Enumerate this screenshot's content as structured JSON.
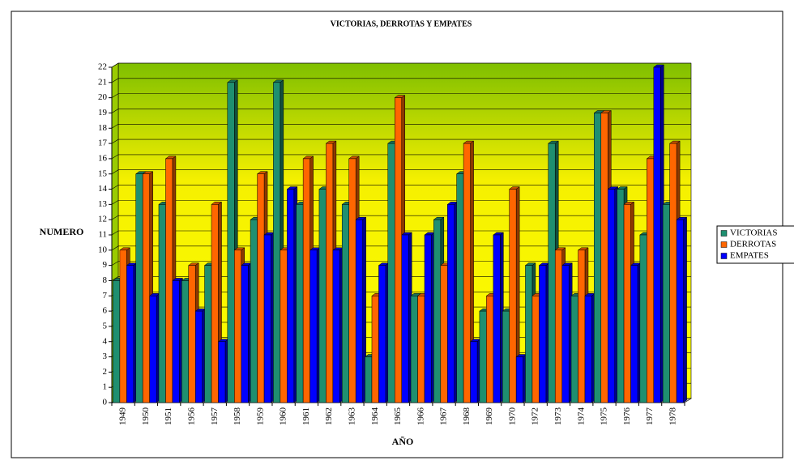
{
  "chart_data": {
    "type": "bar3d",
    "title": "VICTORIAS, DERROTAS Y EMPATES",
    "x_label": "AÑO",
    "y_label": "NUMERO",
    "categories": [
      "1949",
      "1950",
      "1951",
      "1956",
      "1957",
      "1958",
      "1959",
      "1960",
      "1961",
      "1962",
      "1963",
      "1964",
      "1965",
      "1966",
      "1967",
      "1968",
      "1969",
      "1970",
      "1972",
      "1973",
      "1974",
      "1975",
      "1976",
      "1977",
      "1978"
    ],
    "series": [
      {
        "name": "VICTORIAS",
        "color": "#1f8f70",
        "values": [
          8,
          15,
          13,
          8,
          9,
          21,
          12,
          21,
          13,
          14,
          13,
          3,
          17,
          7,
          12,
          15,
          6,
          6,
          9,
          17,
          7,
          19,
          14,
          11,
          13
        ]
      },
      {
        "name": "DERROTAS",
        "color": "#ff6600",
        "values": [
          10,
          15,
          16,
          9,
          13,
          10,
          15,
          10,
          16,
          17,
          16,
          7,
          20,
          7,
          9,
          17,
          7,
          14,
          7,
          10,
          10,
          19,
          13,
          16,
          17
        ]
      },
      {
        "name": "EMPATES",
        "color": "#0000ff",
        "values": [
          9,
          7,
          8,
          6,
          4,
          9,
          11,
          14,
          10,
          10,
          12,
          9,
          11,
          11,
          13,
          4,
          11,
          3,
          9,
          9,
          7,
          14,
          9,
          22,
          12
        ]
      }
    ],
    "ylim": [
      0,
      22
    ],
    "yticks": [
      0,
      1,
      2,
      3,
      4,
      5,
      6,
      7,
      8,
      9,
      10,
      11,
      12,
      13,
      14,
      15,
      16,
      17,
      18,
      19,
      20,
      21,
      22
    ],
    "grid": true,
    "legend": "right"
  }
}
